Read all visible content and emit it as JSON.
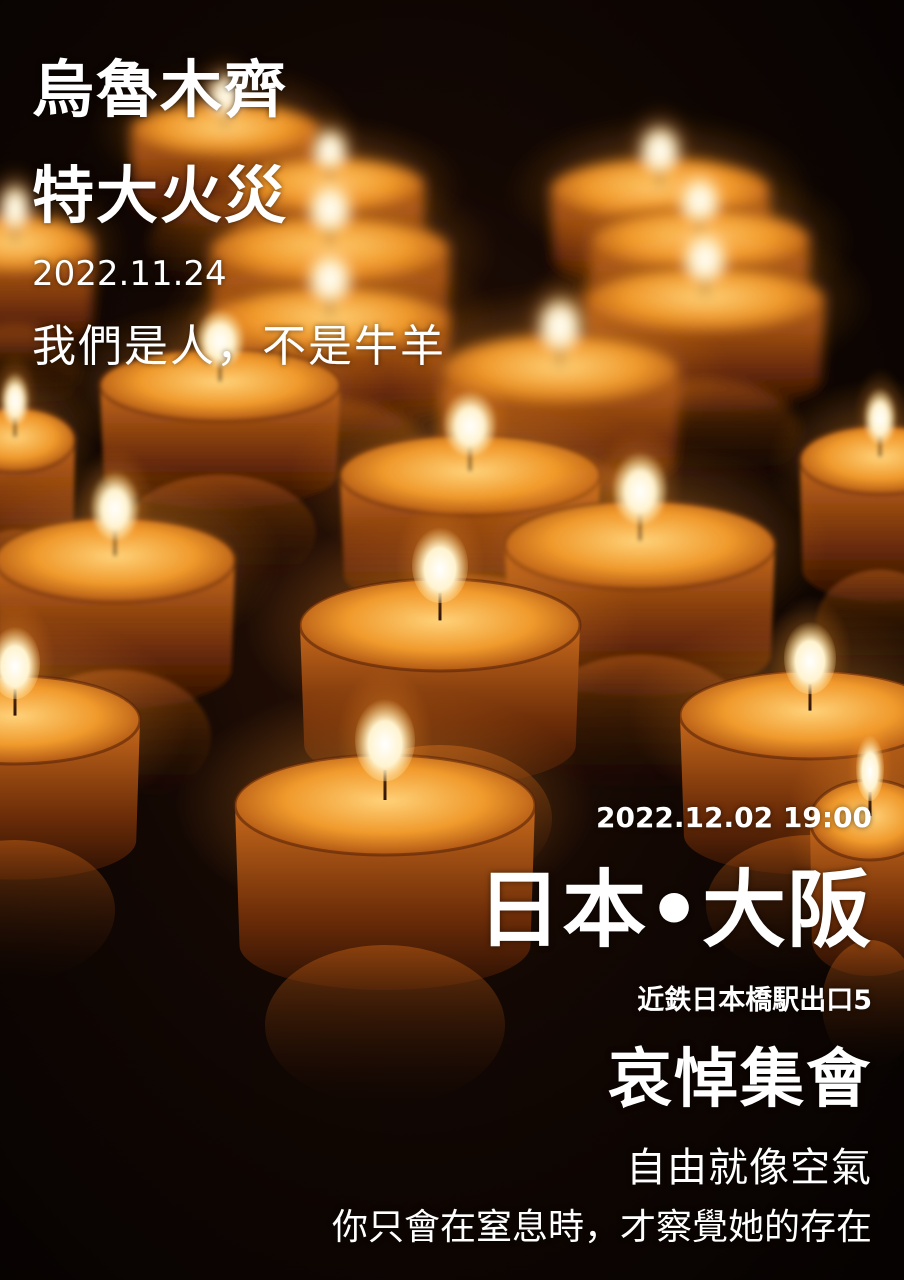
{
  "poster": {
    "title_line1": "烏魯木齊",
    "title_line2": "特大火災",
    "event_date": "2022.11.24",
    "slogan": "我們是人，不是牛羊",
    "vigil_datetime": "2022.12.02 19:00",
    "city": "日本•大阪",
    "meeting_point": "近鉄日本橋駅出口5",
    "vigil_title": "哀悼集會",
    "quote_line1": "自由就像空氣",
    "quote_line2": "你只會在窒息時，才察覺她的存在"
  },
  "colors": {
    "text": "#ffffff",
    "background": "#070302",
    "candle_glow": "#f5a623",
    "candle_body": "#8a3c0c",
    "flame": "#fff6d8"
  }
}
